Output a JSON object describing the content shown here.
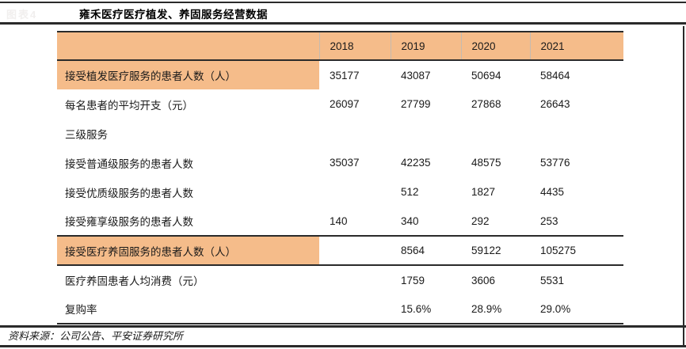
{
  "figure": {
    "tag": "图表4",
    "title": "雍禾医疗医疗植发、养固服务经营数据",
    "source": "资料来源：公司公告、平安证券研究所"
  },
  "colors": {
    "accent_orange": "#F5BC8A",
    "rule_line": "#2A2A2A",
    "text": "#1A1A1A"
  },
  "chart_data": {
    "type": "table",
    "title": "雍禾医疗医疗植发、养固服务经营数据",
    "columns": [
      "",
      "2018",
      "2019",
      "2020",
      "2021"
    ],
    "rows": [
      {
        "label": "接受植发医疗服务的患者人数（人）",
        "values": [
          "35177",
          "43087",
          "50694",
          "58464"
        ],
        "highlight": true,
        "bordered": false
      },
      {
        "label": "每名患者的平均开支（元）",
        "values": [
          "26097",
          "27799",
          "27868",
          "26643"
        ],
        "highlight": false,
        "bordered": false
      },
      {
        "label": "三级服务",
        "values": [
          "",
          "",
          "",
          ""
        ],
        "highlight": false,
        "bordered": false
      },
      {
        "label": "接受普通级服务的患者人数",
        "values": [
          "35037",
          "42235",
          "48575",
          "53776"
        ],
        "highlight": false,
        "bordered": false
      },
      {
        "label": "接受优质级服务的患者人数",
        "values": [
          "",
          "512",
          "1827",
          "4435"
        ],
        "highlight": false,
        "bordered": false
      },
      {
        "label": "接受雍享级服务的患者人数",
        "values": [
          "140",
          "340",
          "292",
          "253"
        ],
        "highlight": false,
        "bordered": false
      },
      {
        "label": "接受医疗养固服务的患者人数（人）",
        "values": [
          "",
          "8564",
          "59122",
          "105275"
        ],
        "highlight": true,
        "bordered": true
      },
      {
        "label": "医疗养固患者人均消费（元）",
        "values": [
          "",
          "1759",
          "3606",
          "5531"
        ],
        "highlight": false,
        "bordered": false
      },
      {
        "label": "复购率",
        "values": [
          "",
          "15.6%",
          "28.9%",
          "29.0%"
        ],
        "highlight": false,
        "bordered": false
      }
    ]
  }
}
